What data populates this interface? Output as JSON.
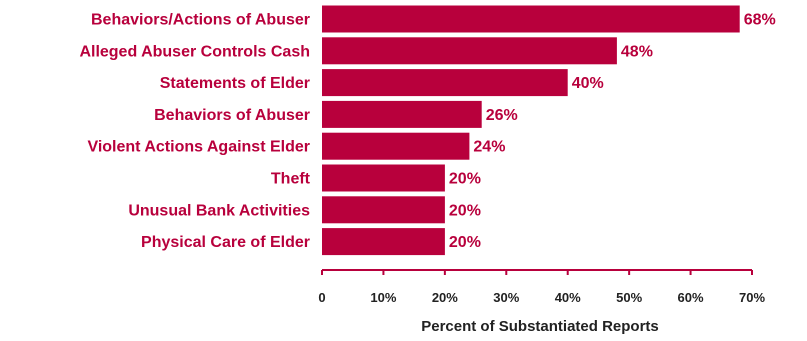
{
  "colors": {
    "bar": "#b8003c",
    "label": "#b8003c",
    "axis": "#b8003c",
    "axis_text": "#222222"
  },
  "chart_data": {
    "type": "bar",
    "orientation": "horizontal",
    "categories": [
      "Behaviors/Actions of Abuser",
      "Alleged Abuser Controls Cash",
      "Statements of Elder",
      "Behaviors of Abuser",
      "Violent Actions Against Elder",
      "Theft",
      "Unusual Bank Activities",
      "Physical Care of Elder"
    ],
    "values": [
      68,
      48,
      40,
      26,
      24,
      20,
      20,
      20
    ],
    "value_labels": [
      "68%",
      "48%",
      "40%",
      "26%",
      "24%",
      "20%",
      "20%",
      "20%"
    ],
    "title": "",
    "xlabel": "Percent of Substantiated Reports",
    "ylabel": "",
    "xlim": [
      0,
      70
    ],
    "xticks": [
      0,
      10,
      20,
      30,
      40,
      50,
      60,
      70
    ],
    "xtick_labels": [
      "0",
      "10%",
      "20%",
      "30%",
      "40%",
      "50%",
      "60%",
      "70%"
    ],
    "grid": false,
    "legend": "none"
  }
}
